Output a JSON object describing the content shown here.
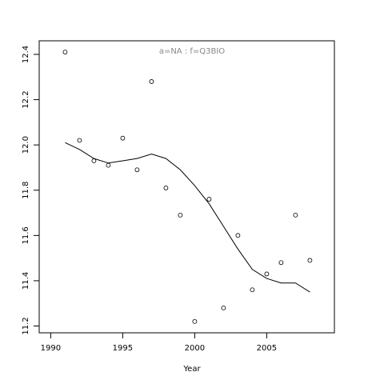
{
  "chart_data": {
    "type": "scatter",
    "annotation": "a=NA  :  f=Q3BIO",
    "x_label": "Year",
    "x": [
      1991,
      1992,
      1993,
      1994,
      1995,
      1996,
      1997,
      1998,
      1999,
      2000,
      2001,
      2002,
      2003,
      2004,
      2005,
      2006,
      2007,
      2008
    ],
    "series": [
      {
        "type": "points",
        "color": "#000000",
        "values": [
          12.41,
          12.02,
          11.93,
          11.91,
          12.03,
          11.89,
          12.28,
          11.81,
          11.69,
          11.22,
          11.76,
          11.28,
          11.6,
          11.36,
          11.43,
          11.48,
          11.69,
          11.49
        ]
      },
      {
        "type": "line",
        "color": "#000000",
        "values": [
          12.01,
          11.98,
          11.94,
          11.92,
          11.93,
          11.94,
          11.96,
          11.94,
          11.89,
          11.82,
          11.74,
          11.64,
          11.54,
          11.45,
          11.41,
          11.39,
          11.39,
          11.35
        ]
      }
    ],
    "xlim": [
      1989.2,
      2009.7
    ],
    "ylim": [
      11.17,
      12.46
    ],
    "xticks": [
      1990,
      1995,
      2000,
      2005
    ],
    "yticks": [
      11.2,
      11.4,
      11.6,
      11.8,
      {
        "value": 12,
        "label": "12.0"
      },
      12.2,
      12.4
    ]
  }
}
